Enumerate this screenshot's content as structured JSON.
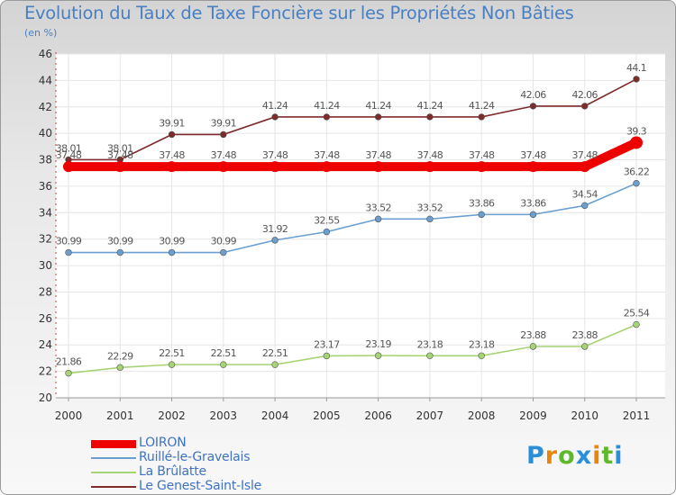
{
  "header": {
    "title": "Evolution du Taux de Taxe Foncière sur les Propriétés Non Bâties",
    "unit": "(en %)"
  },
  "chart_data": {
    "type": "line",
    "title": "Evolution du Taux de Taxe Foncière sur les Propriétés Non Bâties",
    "ylabel": "(en %)",
    "xlabel": "",
    "x": [
      "2000",
      "2001",
      "2002",
      "2003",
      "2004",
      "2005",
      "2006",
      "2007",
      "2008",
      "2009",
      "2010",
      "2011"
    ],
    "ylim": [
      20,
      46
    ],
    "yticks": [
      "20",
      "22",
      "24",
      "26",
      "28",
      "30",
      "32",
      "34",
      "36",
      "38",
      "40",
      "42",
      "44",
      "46"
    ],
    "grid": true,
    "legend_position": "bottom-left",
    "series": [
      {
        "name": "Le Genest-Saint-Isle",
        "color": "#7d2b2b",
        "values": [
          38.01,
          38.01,
          39.91,
          39.91,
          41.24,
          41.24,
          41.24,
          41.24,
          41.24,
          42.06,
          42.06,
          44.1
        ],
        "labels": [
          "38.01",
          "38.01",
          "39.91",
          "39.91",
          "41.24",
          "41.24",
          "41.24",
          "41.24",
          "41.24",
          "42.06",
          "42.06",
          "44.1"
        ]
      },
      {
        "name": "LOIRON",
        "color": "#ee0000",
        "values": [
          37.48,
          37.48,
          37.48,
          37.48,
          37.48,
          37.48,
          37.48,
          37.48,
          37.48,
          37.48,
          37.48,
          39.3
        ],
        "labels": [
          "37.48",
          "37.48",
          "37.48",
          "37.48",
          "37.48",
          "37.48",
          "37.48",
          "37.48",
          "37.48",
          "37.48",
          "37.48",
          "39.3"
        ]
      },
      {
        "name": "Ruillé-le-Gravelais",
        "color": "#6b9fcf",
        "values": [
          30.99,
          30.99,
          30.99,
          30.99,
          31.92,
          32.55,
          33.52,
          33.52,
          33.86,
          33.86,
          34.54,
          36.22
        ],
        "labels": [
          "30.99",
          "30.99",
          "30.99",
          "30.99",
          "31.92",
          "32.55",
          "33.52",
          "33.52",
          "33.86",
          "33.86",
          "34.54",
          "36.22"
        ]
      },
      {
        "name": "La Brûlatte",
        "color": "#a6d474",
        "values": [
          21.86,
          22.29,
          22.51,
          22.51,
          22.51,
          23.17,
          23.19,
          23.18,
          23.18,
          23.88,
          23.88,
          25.54
        ],
        "labels": [
          "21.86",
          "22.29",
          "22.51",
          "22.51",
          "22.51",
          "23.17",
          "23.19",
          "23.18",
          "23.18",
          "23.88",
          "23.88",
          "25.54"
        ]
      }
    ]
  },
  "legend": {
    "items": [
      {
        "label": "LOIRON",
        "color": "#ee0000"
      },
      {
        "label": "Ruillé-le-Gravelais",
        "color": "#6b9fcf"
      },
      {
        "label": "La Brûlatte",
        "color": "#a6d474"
      },
      {
        "label": "Le Genest-Saint-Isle",
        "color": "#7d2b2b"
      }
    ]
  },
  "logo": {
    "letters": [
      "P",
      "r",
      "o",
      "x",
      "i",
      "t",
      "i"
    ],
    "colors": [
      "#2a8fd8",
      "#e8860c",
      "#5fb82c",
      "#2a8fd8",
      "#e8860c",
      "#5fb82c",
      "#2a8fd8"
    ]
  }
}
